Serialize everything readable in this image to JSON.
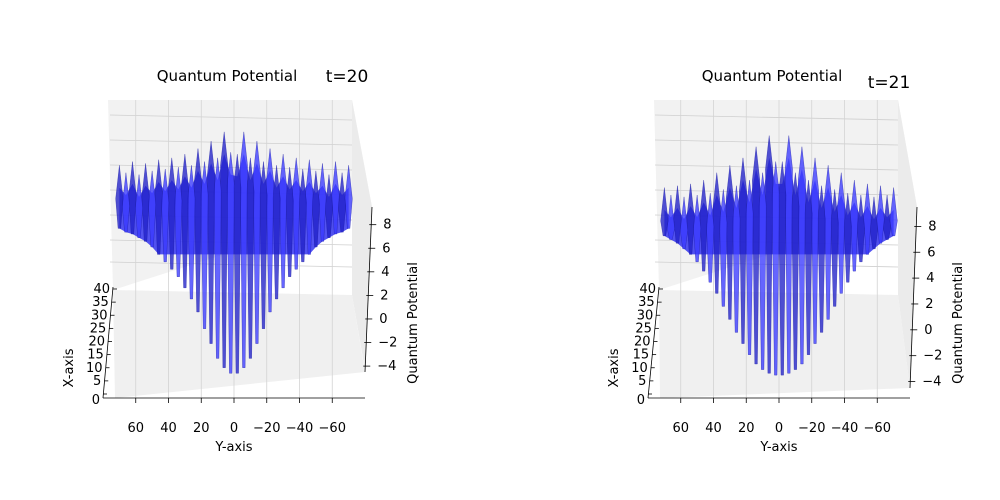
{
  "chart_data": [
    {
      "type": "surface-3d",
      "title": "Quantum Potential",
      "annotation": "t=20",
      "xlabel": "X-axis",
      "ylabel": "Y-axis",
      "zlabel": "Quantum Potential",
      "x_ticks": [
        0,
        5,
        10,
        15,
        20,
        25,
        30,
        35,
        40
      ],
      "y_ticks": [
        60,
        40,
        20,
        0,
        -20,
        -40,
        -60
      ],
      "z_ticks": [
        -4,
        -2,
        0,
        2,
        4,
        6,
        8
      ],
      "ylim": [
        80,
        -80
      ],
      "zlim": [
        -4.5,
        9.5
      ],
      "surface_color": "#3333ff",
      "series": [
        {
          "y": [
            -70,
            -66,
            -62,
            -58,
            -54,
            -50,
            -46,
            -42,
            -38,
            -34,
            -30,
            -26,
            -22,
            -18,
            -14,
            -10,
            -6,
            -2,
            2,
            6,
            10,
            14,
            18,
            22,
            26,
            30,
            34,
            38,
            42,
            46,
            50,
            54,
            58,
            62,
            66,
            70
          ],
          "z_max": [
            7.6,
            7.2,
            7.8,
            7.1,
            7.7,
            7.3,
            7.9,
            7.4,
            8.0,
            7.5,
            8.2,
            7.6,
            8.5,
            7.8,
            8.9,
            8.0,
            9.4,
            8.2,
            8.3,
            9.4,
            8.0,
            8.9,
            7.8,
            8.5,
            7.6,
            8.2,
            7.5,
            8.0,
            7.4,
            7.9,
            7.3,
            7.7,
            7.1,
            7.8,
            7.2,
            7.6
          ],
          "z_min": [
            4.2,
            4.0,
            3.9,
            3.7,
            3.5,
            3.2,
            2.8,
            2.4,
            2.0,
            1.6,
            1.0,
            0.4,
            -0.3,
            -1.2,
            -2.0,
            -2.8,
            -3.3,
            -3.6,
            -3.6,
            -3.3,
            -2.8,
            -2.0,
            -1.2,
            -0.3,
            0.4,
            1.0,
            1.6,
            2.0,
            2.4,
            2.8,
            3.2,
            3.5,
            3.7,
            3.9,
            4.0,
            4.2
          ]
        }
      ]
    },
    {
      "type": "surface-3d",
      "title": "Quantum Potential",
      "annotation": "t=21",
      "xlabel": "X-axis",
      "ylabel": "Y-axis",
      "zlabel": "Quantum Potential",
      "x_ticks": [
        0,
        5,
        10,
        15,
        20,
        25,
        30,
        35,
        40
      ],
      "y_ticks": [
        60,
        40,
        20,
        0,
        -20,
        -40,
        -60
      ],
      "z_ticks": [
        -4,
        -2,
        0,
        2,
        4,
        6,
        8
      ],
      "ylim": [
        80,
        -80
      ],
      "zlim": [
        -4.5,
        9.5
      ],
      "surface_color": "#3333ff",
      "series": [
        {
          "y": [
            -70,
            -66,
            -62,
            -58,
            -54,
            -50,
            -46,
            -42,
            -38,
            -34,
            -30,
            -26,
            -22,
            -18,
            -14,
            -10,
            -6,
            -2,
            2,
            6,
            10,
            14,
            18,
            22,
            26,
            30,
            34,
            38,
            42,
            46,
            50,
            54,
            58,
            62,
            66,
            70
          ],
          "z_max": [
            6.4,
            6.0,
            6.5,
            5.9,
            6.6,
            6.0,
            6.8,
            6.1,
            7.2,
            6.3,
            7.6,
            6.5,
            8.0,
            6.8,
            8.6,
            7.2,
            9.2,
            7.8,
            7.8,
            9.2,
            7.2,
            8.6,
            6.8,
            8.0,
            6.5,
            7.6,
            6.3,
            7.2,
            6.1,
            6.8,
            6.0,
            6.6,
            5.9,
            6.5,
            6.0,
            6.4
          ],
          "z_min": [
            3.8,
            3.6,
            3.4,
            3.1,
            2.8,
            2.4,
            1.9,
            1.3,
            0.7,
            0.0,
            -0.7,
            -1.4,
            -2.0,
            -2.6,
            -3.1,
            -3.4,
            -3.6,
            -3.7,
            -3.7,
            -3.6,
            -3.4,
            -3.1,
            -2.6,
            -2.0,
            -1.4,
            -0.7,
            0.0,
            0.7,
            1.3,
            1.9,
            2.4,
            2.8,
            3.1,
            3.4,
            3.6,
            3.8
          ]
        }
      ]
    }
  ]
}
